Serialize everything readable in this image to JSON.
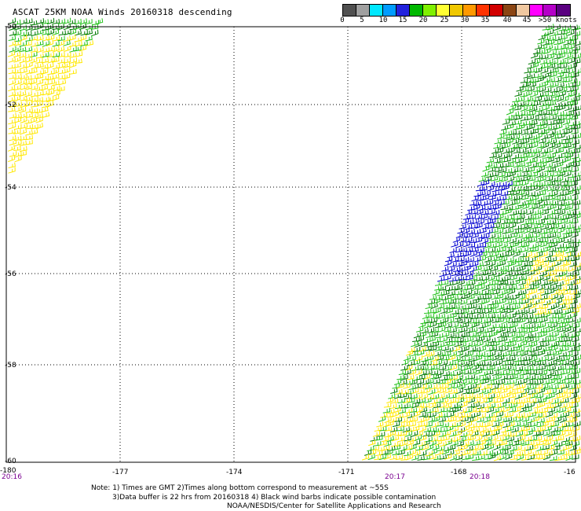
{
  "header": {
    "title": "ASCAT 25KM NOAA Winds 20160318 descending"
  },
  "colorbar": {
    "colors": [
      "#505050",
      "#a0a0a0",
      "#00e8ff",
      "#009cff",
      "#2222dd",
      "#00b800",
      "#7ff000",
      "#ffff33",
      "#f0c800",
      "#ff9900",
      "#ff3300",
      "#d20000",
      "#8b4513",
      "#f0c8a0",
      "#ff00ff",
      "#b400c8",
      "#5a0080"
    ],
    "ticks": [
      "0",
      "5",
      "10",
      "15",
      "20",
      "25",
      "30",
      "35",
      "40",
      "45",
      ">50 knots"
    ]
  },
  "map": {
    "lon_ticks": [
      "-180",
      "-177",
      "-174",
      "-171",
      "-168",
      "-16"
    ],
    "lat_ticks": [
      "-50",
      "-52",
      "-54",
      "-56",
      "-58",
      "-60"
    ],
    "time_labels": [
      "20:16",
      "20:17",
      "20:18"
    ],
    "time_label_color": "#7a0090",
    "barb_colors": {
      "yellow": "#ffe800",
      "green": "#22c21a",
      "darkgreen": "#007a00",
      "blue": "#0000d0"
    }
  },
  "footer": {
    "line1": "Note: 1) Times are GMT 2)Times along bottom correspond to measurement at ~55S",
    "line2": "3)Data buffer is 22 hrs from 20160318 4) Black wind barbs indicate possible contamination",
    "line3": "NOAA/NESDIS/Center for Satellite Applications and Research"
  }
}
